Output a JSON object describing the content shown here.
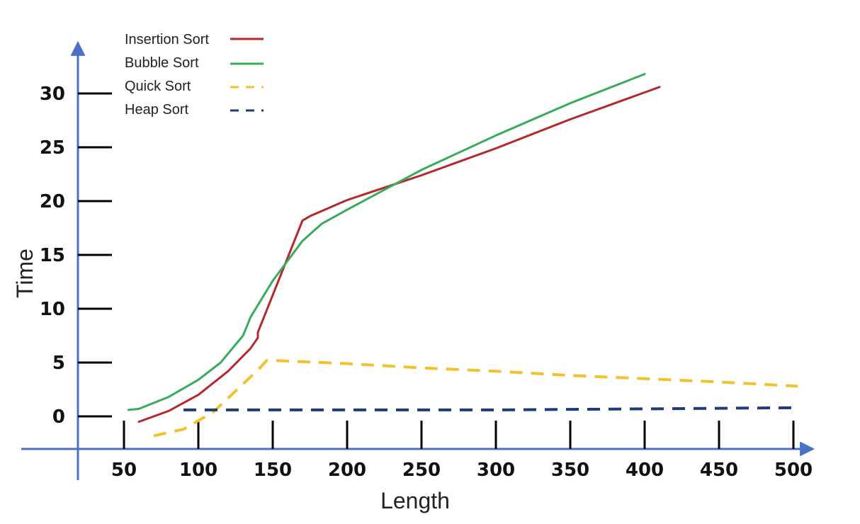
{
  "chart_data": {
    "type": "line",
    "xlabel": "Length",
    "ylabel": "Time",
    "x_ticks": [
      50,
      100,
      150,
      200,
      250,
      300,
      350,
      400,
      450,
      500
    ],
    "y_ticks": [
      0,
      5,
      10,
      15,
      20,
      25,
      30
    ],
    "legend_position": "top-left",
    "series": [
      {
        "name": "Insertion Sort",
        "color": "#b5282e",
        "style": "solid",
        "points": [
          [
            60,
            -0.5
          ],
          [
            80,
            0.5
          ],
          [
            100,
            2.0
          ],
          [
            120,
            4.2
          ],
          [
            135,
            6.3
          ],
          [
            140,
            7.3
          ],
          [
            140,
            7.8
          ],
          [
            170,
            18.2
          ],
          [
            175,
            18.6
          ],
          [
            200,
            20.1
          ],
          [
            250,
            22.4
          ],
          [
            300,
            24.9
          ],
          [
            350,
            27.6
          ],
          [
            400,
            30.1
          ],
          [
            410,
            30.6
          ]
        ]
      },
      {
        "name": "Bubble Sort",
        "color": "#3aaa5c",
        "style": "solid",
        "points": [
          [
            53,
            0.6
          ],
          [
            60,
            0.7
          ],
          [
            80,
            1.8
          ],
          [
            100,
            3.4
          ],
          [
            115,
            5.0
          ],
          [
            130,
            7.5
          ],
          [
            133,
            8.5
          ],
          [
            135,
            9.2
          ],
          [
            150,
            12.6
          ],
          [
            170,
            16.3
          ],
          [
            183,
            17.9
          ],
          [
            200,
            19.2
          ],
          [
            250,
            22.9
          ],
          [
            300,
            26.1
          ],
          [
            350,
            29.1
          ],
          [
            400,
            31.8
          ]
        ]
      },
      {
        "name": "Quick Sort",
        "color": "#f2c12e",
        "style": "dashed",
        "points": [
          [
            70,
            -1.8
          ],
          [
            90,
            -1.2
          ],
          [
            110,
            0.4
          ],
          [
            130,
            3.0
          ],
          [
            140,
            4.3
          ],
          [
            146,
            5.2
          ],
          [
            150,
            5.2
          ],
          [
            200,
            4.9
          ],
          [
            250,
            4.5
          ],
          [
            300,
            4.2
          ],
          [
            350,
            3.8
          ],
          [
            400,
            3.5
          ],
          [
            450,
            3.2
          ],
          [
            503,
            2.8
          ]
        ]
      },
      {
        "name": "Heap Sort",
        "color": "#1f3c78",
        "style": "dashed",
        "points": [
          [
            90,
            0.6
          ],
          [
            150,
            0.6
          ],
          [
            200,
            0.6
          ],
          [
            250,
            0.6
          ],
          [
            300,
            0.6
          ],
          [
            350,
            0.65
          ],
          [
            400,
            0.7
          ],
          [
            450,
            0.75
          ],
          [
            500,
            0.8
          ]
        ]
      }
    ]
  }
}
